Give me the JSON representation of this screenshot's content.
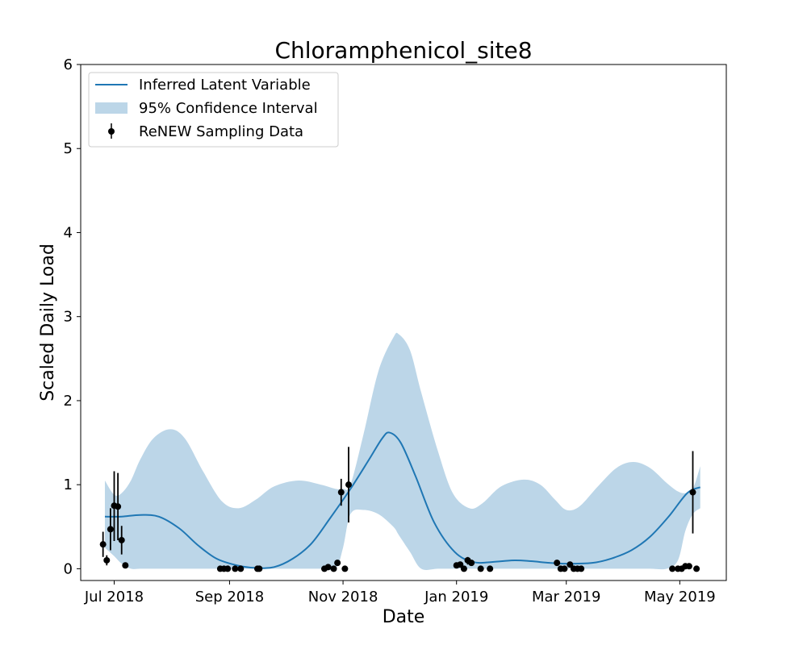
{
  "chart_data": {
    "type": "line",
    "title": "Chloramphenicol_site8",
    "xlabel": "Date",
    "ylabel": "Scaled Daily Load",
    "x_axis": {
      "kind": "date",
      "range": [
        "2018-06-13",
        "2019-05-26"
      ],
      "ticks": [
        {
          "date": "2018-07-01",
          "label": "Jul 2018"
        },
        {
          "date": "2018-09-01",
          "label": "Sep 2018"
        },
        {
          "date": "2018-11-01",
          "label": "Nov 2018"
        },
        {
          "date": "2019-01-01",
          "label": "Jan 2019"
        },
        {
          "date": "2019-03-01",
          "label": "Mar 2019"
        },
        {
          "date": "2019-05-01",
          "label": "May 2019"
        }
      ]
    },
    "y_axis": {
      "range": [
        -0.14,
        6
      ],
      "ticks": [
        0,
        1,
        2,
        3,
        4,
        5,
        6
      ]
    },
    "grid": false,
    "legend": {
      "position": "top-left",
      "entries": [
        "Inferred Latent Variable",
        "95% Confidence Interval",
        "ReNEW Sampling Data"
      ]
    },
    "colors": {
      "latent": "#1f77b4",
      "band": "#bcd6e8",
      "points": "#000000"
    },
    "series": [
      {
        "name": "Inferred Latent Variable",
        "type": "line",
        "points": [
          [
            "2018-06-26",
            0.62
          ],
          [
            "2018-07-05",
            0.62
          ],
          [
            "2018-07-15",
            0.64
          ],
          [
            "2018-07-25",
            0.62
          ],
          [
            "2018-08-05",
            0.48
          ],
          [
            "2018-08-15",
            0.28
          ],
          [
            "2018-08-25",
            0.12
          ],
          [
            "2018-09-05",
            0.04
          ],
          [
            "2018-09-15",
            0.01
          ],
          [
            "2018-09-25",
            0.02
          ],
          [
            "2018-10-05",
            0.12
          ],
          [
            "2018-10-15",
            0.3
          ],
          [
            "2018-10-25",
            0.6
          ],
          [
            "2018-11-05",
            0.95
          ],
          [
            "2018-11-15",
            1.3
          ],
          [
            "2018-11-22",
            1.55
          ],
          [
            "2018-11-26",
            1.62
          ],
          [
            "2018-12-02",
            1.5
          ],
          [
            "2018-12-10",
            1.1
          ],
          [
            "2018-12-20",
            0.55
          ],
          [
            "2018-12-31",
            0.2
          ],
          [
            "2019-01-10",
            0.08
          ],
          [
            "2019-01-20",
            0.08
          ],
          [
            "2019-02-01",
            0.1
          ],
          [
            "2019-02-10",
            0.09
          ],
          [
            "2019-02-20",
            0.07
          ],
          [
            "2019-03-01",
            0.06
          ],
          [
            "2019-03-15",
            0.07
          ],
          [
            "2019-03-25",
            0.12
          ],
          [
            "2019-04-05",
            0.22
          ],
          [
            "2019-04-15",
            0.38
          ],
          [
            "2019-04-25",
            0.62
          ],
          [
            "2019-05-05",
            0.9
          ],
          [
            "2019-05-12",
            0.97
          ]
        ]
      },
      {
        "name": "95% Confidence Interval",
        "type": "band",
        "points": [
          [
            "2018-06-26",
            0.25,
            1.05
          ],
          [
            "2018-07-01",
            0.15,
            0.88
          ],
          [
            "2018-07-05",
            0.06,
            0.9
          ],
          [
            "2018-07-10",
            0.0,
            1.05
          ],
          [
            "2018-07-15",
            0.0,
            1.3
          ],
          [
            "2018-07-22",
            0.0,
            1.55
          ],
          [
            "2018-07-31",
            0.0,
            1.66
          ],
          [
            "2018-08-08",
            0.0,
            1.55
          ],
          [
            "2018-08-18",
            0.0,
            1.15
          ],
          [
            "2018-08-28",
            0.0,
            0.8
          ],
          [
            "2018-09-06",
            0.0,
            0.72
          ],
          [
            "2018-09-15",
            0.0,
            0.82
          ],
          [
            "2018-09-25",
            0.0,
            0.98
          ],
          [
            "2018-10-08",
            0.0,
            1.05
          ],
          [
            "2018-10-20",
            0.0,
            1.0
          ],
          [
            "2018-10-28",
            0.0,
            0.95
          ],
          [
            "2018-11-01",
            0.25,
            0.95
          ],
          [
            "2018-11-05",
            0.65,
            1.0
          ],
          [
            "2018-11-12",
            0.7,
            1.6
          ],
          [
            "2018-11-20",
            0.65,
            2.35
          ],
          [
            "2018-11-28",
            0.5,
            2.75
          ],
          [
            "2018-12-01",
            0.4,
            2.79
          ],
          [
            "2018-12-07",
            0.2,
            2.6
          ],
          [
            "2018-12-13",
            0.0,
            2.1
          ],
          [
            "2018-12-22",
            0.0,
            1.4
          ],
          [
            "2018-12-30",
            0.0,
            0.9
          ],
          [
            "2019-01-08",
            0.0,
            0.72
          ],
          [
            "2019-01-15",
            0.0,
            0.78
          ],
          [
            "2019-01-25",
            0.0,
            0.98
          ],
          [
            "2019-02-06",
            0.0,
            1.06
          ],
          [
            "2019-02-15",
            0.0,
            1.0
          ],
          [
            "2019-02-23",
            0.0,
            0.82
          ],
          [
            "2019-03-01",
            0.0,
            0.7
          ],
          [
            "2019-03-08",
            0.0,
            0.74
          ],
          [
            "2019-03-18",
            0.0,
            0.98
          ],
          [
            "2019-03-28",
            0.0,
            1.2
          ],
          [
            "2019-04-06",
            0.0,
            1.27
          ],
          [
            "2019-04-15",
            0.0,
            1.2
          ],
          [
            "2019-04-24",
            0.0,
            1.02
          ],
          [
            "2019-04-30",
            0.1,
            0.92
          ],
          [
            "2019-05-04",
            0.45,
            0.9
          ],
          [
            "2019-05-08",
            0.65,
            0.95
          ],
          [
            "2019-05-12",
            0.72,
            1.22
          ]
        ]
      },
      {
        "name": "ReNEW Sampling Data",
        "type": "errorbar",
        "points": [
          [
            "2018-06-25",
            0.29,
            0.14,
            0.44
          ],
          [
            "2018-06-27",
            0.1,
            0.04,
            0.16
          ],
          [
            "2018-06-29",
            0.47,
            0.22,
            0.72
          ],
          [
            "2018-07-01",
            0.75,
            0.33,
            1.16
          ],
          [
            "2018-07-03",
            0.74,
            0.34,
            1.14
          ],
          [
            "2018-07-05",
            0.34,
            0.17,
            0.51
          ],
          [
            "2018-07-07",
            0.04,
            0.04,
            0.04
          ],
          [
            "2018-08-27",
            0.0,
            0.0,
            0.0
          ],
          [
            "2018-08-29",
            0.0,
            0.0,
            0.0
          ],
          [
            "2018-08-31",
            0.0,
            0.0,
            0.0
          ],
          [
            "2018-09-04",
            0.0,
            0.0,
            0.0
          ],
          [
            "2018-09-07",
            0.0,
            0.0,
            0.0
          ],
          [
            "2018-09-16",
            0.0,
            0.0,
            0.0
          ],
          [
            "2018-09-17",
            0.0,
            0.0,
            0.0
          ],
          [
            "2018-10-22",
            0.0,
            0.0,
            0.0
          ],
          [
            "2018-10-24",
            0.02,
            0.02,
            0.02
          ],
          [
            "2018-10-27",
            0.0,
            0.0,
            0.0
          ],
          [
            "2018-10-29",
            0.07,
            0.07,
            0.07
          ],
          [
            "2018-10-31",
            0.91,
            0.75,
            1.07
          ],
          [
            "2018-11-02",
            0.0,
            0.0,
            0.0
          ],
          [
            "2018-11-04",
            1.0,
            0.55,
            1.45
          ],
          [
            "2019-01-01",
            0.04,
            0.04,
            0.04
          ],
          [
            "2019-01-03",
            0.05,
            0.05,
            0.05
          ],
          [
            "2019-01-05",
            0.0,
            0.0,
            0.0
          ],
          [
            "2019-01-07",
            0.1,
            0.05,
            0.14
          ],
          [
            "2019-01-09",
            0.07,
            0.07,
            0.07
          ],
          [
            "2019-01-14",
            0.0,
            0.0,
            0.0
          ],
          [
            "2019-01-19",
            0.0,
            0.0,
            0.0
          ],
          [
            "2019-02-24",
            0.07,
            0.07,
            0.07
          ],
          [
            "2019-02-26",
            0.0,
            0.0,
            0.0
          ],
          [
            "2019-02-28",
            0.0,
            0.0,
            0.0
          ],
          [
            "2019-03-03",
            0.05,
            0.05,
            0.05
          ],
          [
            "2019-03-05",
            0.0,
            0.0,
            0.0
          ],
          [
            "2019-03-07",
            0.0,
            0.0,
            0.0
          ],
          [
            "2019-03-09",
            0.0,
            0.0,
            0.0
          ],
          [
            "2019-04-27",
            0.0,
            0.0,
            0.0
          ],
          [
            "2019-04-30",
            0.0,
            0.0,
            0.0
          ],
          [
            "2019-05-02",
            0.0,
            0.0,
            0.0
          ],
          [
            "2019-05-04",
            0.03,
            0.03,
            0.03
          ],
          [
            "2019-05-06",
            0.03,
            0.03,
            0.03
          ],
          [
            "2019-05-08",
            0.91,
            0.42,
            1.4
          ],
          [
            "2019-05-10",
            0.0,
            0.0,
            0.0
          ]
        ]
      }
    ]
  }
}
